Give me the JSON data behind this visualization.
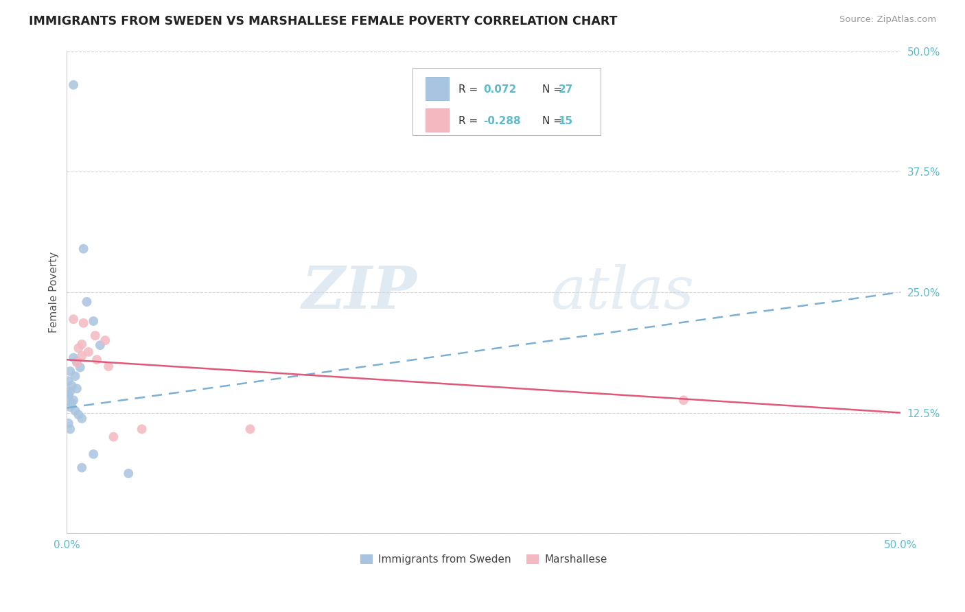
{
  "title": "IMMIGRANTS FROM SWEDEN VS MARSHALLESE FEMALE POVERTY CORRELATION CHART",
  "source": "Source: ZipAtlas.com",
  "ylabel": "Female Poverty",
  "xlim": [
    0.0,
    0.5
  ],
  "ylim": [
    0.0,
    0.5
  ],
  "xticks": [
    0.0,
    0.125,
    0.25,
    0.375,
    0.5
  ],
  "xticklabels": [
    "0.0%",
    "",
    "",
    "",
    "50.0%"
  ],
  "yticks": [
    0.0,
    0.125,
    0.25,
    0.375,
    0.5
  ],
  "yticklabels": [
    "",
    "12.5%",
    "25.0%",
    "37.5%",
    "50.0%"
  ],
  "sweden_color": "#a8c4e0",
  "marshallese_color": "#f4b8c1",
  "sweden_line_color": "#7bafd4",
  "marshallese_line_color": "#e05878",
  "sweden_R": 0.072,
  "sweden_N": 27,
  "marshallese_R": -0.288,
  "marshallese_N": 15,
  "sweden_line": [
    [
      0.0,
      0.13
    ],
    [
      0.5,
      0.25
    ]
  ],
  "marshallese_line": [
    [
      0.0,
      0.18
    ],
    [
      0.5,
      0.125
    ]
  ],
  "sweden_points": [
    [
      0.004,
      0.465
    ],
    [
      0.01,
      0.295
    ],
    [
      0.012,
      0.24
    ],
    [
      0.016,
      0.22
    ],
    [
      0.02,
      0.195
    ],
    [
      0.004,
      0.182
    ],
    [
      0.006,
      0.178
    ],
    [
      0.008,
      0.172
    ],
    [
      0.002,
      0.168
    ],
    [
      0.005,
      0.163
    ],
    [
      0.001,
      0.158
    ],
    [
      0.003,
      0.153
    ],
    [
      0.006,
      0.15
    ],
    [
      0.002,
      0.147
    ],
    [
      0.001,
      0.144
    ],
    [
      0.001,
      0.141
    ],
    [
      0.004,
      0.138
    ],
    [
      0.003,
      0.135
    ],
    [
      0.002,
      0.131
    ],
    [
      0.005,
      0.127
    ],
    [
      0.007,
      0.123
    ],
    [
      0.009,
      0.119
    ],
    [
      0.001,
      0.114
    ],
    [
      0.002,
      0.108
    ],
    [
      0.016,
      0.082
    ],
    [
      0.009,
      0.068
    ],
    [
      0.037,
      0.062
    ]
  ],
  "marshallese_points": [
    [
      0.004,
      0.222
    ],
    [
      0.01,
      0.218
    ],
    [
      0.017,
      0.205
    ],
    [
      0.023,
      0.2
    ],
    [
      0.009,
      0.196
    ],
    [
      0.007,
      0.192
    ],
    [
      0.013,
      0.188
    ],
    [
      0.009,
      0.184
    ],
    [
      0.018,
      0.18
    ],
    [
      0.006,
      0.177
    ],
    [
      0.025,
      0.173
    ],
    [
      0.028,
      0.1
    ],
    [
      0.11,
      0.108
    ],
    [
      0.37,
      0.138
    ],
    [
      0.045,
      0.108
    ]
  ],
  "watermark_zip": "ZIP",
  "watermark_atlas": "atlas",
  "background_color": "#ffffff",
  "grid_color": "#d0d0d0",
  "tick_color": "#5bbccc",
  "legend_text_color": "#333333",
  "legend_value_color": "#5bbccc"
}
